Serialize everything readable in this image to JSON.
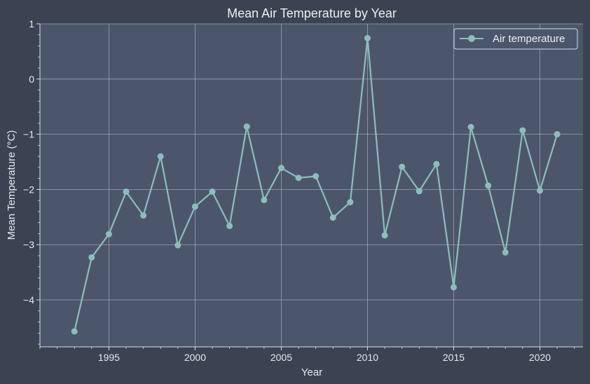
{
  "colors": {
    "figure_bg": "#3b4252",
    "plot_bg": "#4c566a",
    "grid": "#d8dee9",
    "axis": "#d8dee9",
    "text": "#e5e9f0",
    "series": "#8fbcbb"
  },
  "chart_data": {
    "type": "line",
    "title": "Mean Air Temperature by Year",
    "xlabel": "Year",
    "ylabel": "Mean Temperature (°C)",
    "xlim": [
      1991.0,
      2022.5
    ],
    "ylim": [
      -4.85,
      1.0
    ],
    "x_ticks": [
      1995,
      2000,
      2005,
      2010,
      2015,
      2020
    ],
    "x_tick_labels": [
      "1995",
      "2000",
      "2005",
      "2010",
      "2015",
      "2020"
    ],
    "y_ticks": [
      1,
      0,
      -1,
      -2,
      -3,
      -4
    ],
    "y_tick_labels": [
      "1",
      "0",
      "−1",
      "−2",
      "−3",
      "−4"
    ],
    "grid": true,
    "legend_position": "top-right",
    "series": [
      {
        "name": "Air temperature",
        "marker": "circle",
        "x": [
          1993,
          1994,
          1995,
          1996,
          1997,
          1998,
          1999,
          2000,
          2001,
          2002,
          2003,
          2004,
          2005,
          2006,
          2007,
          2008,
          2009,
          2010,
          2011,
          2012,
          2013,
          2014,
          2015,
          2016,
          2017,
          2018,
          2019,
          2020,
          2021
        ],
        "y": [
          -4.57,
          -3.23,
          -2.81,
          -2.04,
          -2.47,
          -1.4,
          -3.01,
          -2.31,
          -2.04,
          -2.66,
          -0.86,
          -2.19,
          -1.61,
          -1.79,
          -1.76,
          -2.51,
          -2.23,
          0.74,
          -2.83,
          -1.59,
          -2.03,
          -1.54,
          -3.77,
          -0.87,
          -1.93,
          -3.14,
          -0.93,
          -2.02,
          -1.0
        ]
      }
    ]
  }
}
